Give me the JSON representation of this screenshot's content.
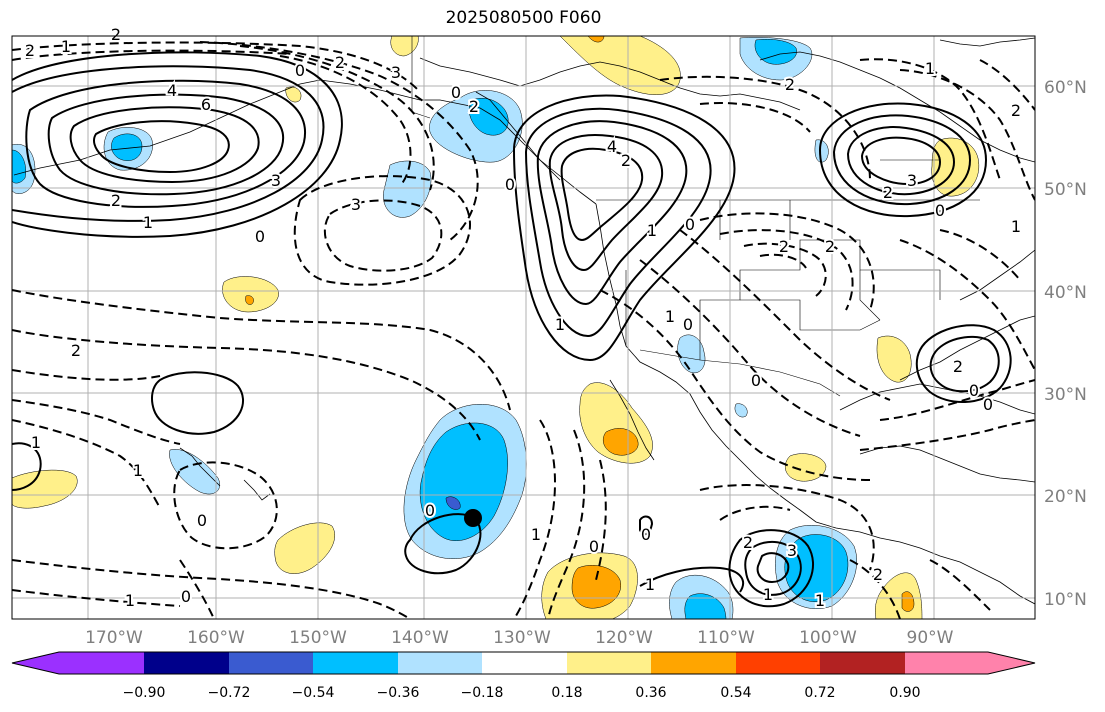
{
  "title": "2025080500 F060",
  "colors": {
    "neg_090": "#9b30ff",
    "neg_072": "#00008b",
    "neg_054": "#3a5bd0",
    "neg_036": "#00bfff",
    "neg_018": "#b0e2ff",
    "neutral": "#ffffff",
    "pos_018": "#fff08a",
    "pos_036": "#ffa500",
    "pos_054": "#ff4000",
    "pos_072": "#b22222",
    "pos_090": "#ff82ab",
    "grid": "#b0b0b0",
    "contour": "#000000"
  },
  "longitude_labels": [
    "170°W",
    "160°W",
    "150°W",
    "140°W",
    "130°W",
    "120°W",
    "110°W",
    "100°W",
    "90°W"
  ],
  "latitude_labels": [
    "60°N",
    "50°N",
    "40°N",
    "30°N",
    "20°N",
    "10°N"
  ],
  "colorbar": {
    "ticks": [
      "−0.90",
      "−0.72",
      "−0.54",
      "−0.36",
      "−0.18",
      "0.18",
      "0.36",
      "0.54",
      "0.72",
      "0.90"
    ],
    "extend": "both"
  },
  "contour_labels": [
    "1",
    "2",
    "2",
    "0",
    "4",
    "6",
    "3",
    "2",
    "1",
    "0",
    "2",
    "3",
    "0",
    "2",
    "0",
    "3",
    "4",
    "2",
    "1",
    "1",
    "0",
    "2",
    "2",
    "1",
    "0",
    "0",
    "3",
    "1",
    "2",
    "0",
    "2",
    "2",
    "0",
    "0",
    "1",
    "0",
    "1",
    "0",
    "2",
    "1",
    "0",
    "2",
    "1",
    "1",
    "1",
    "0",
    "0",
    "2",
    "3",
    "2",
    "1",
    "1"
  ],
  "marker": "cyclone-center-dot"
}
